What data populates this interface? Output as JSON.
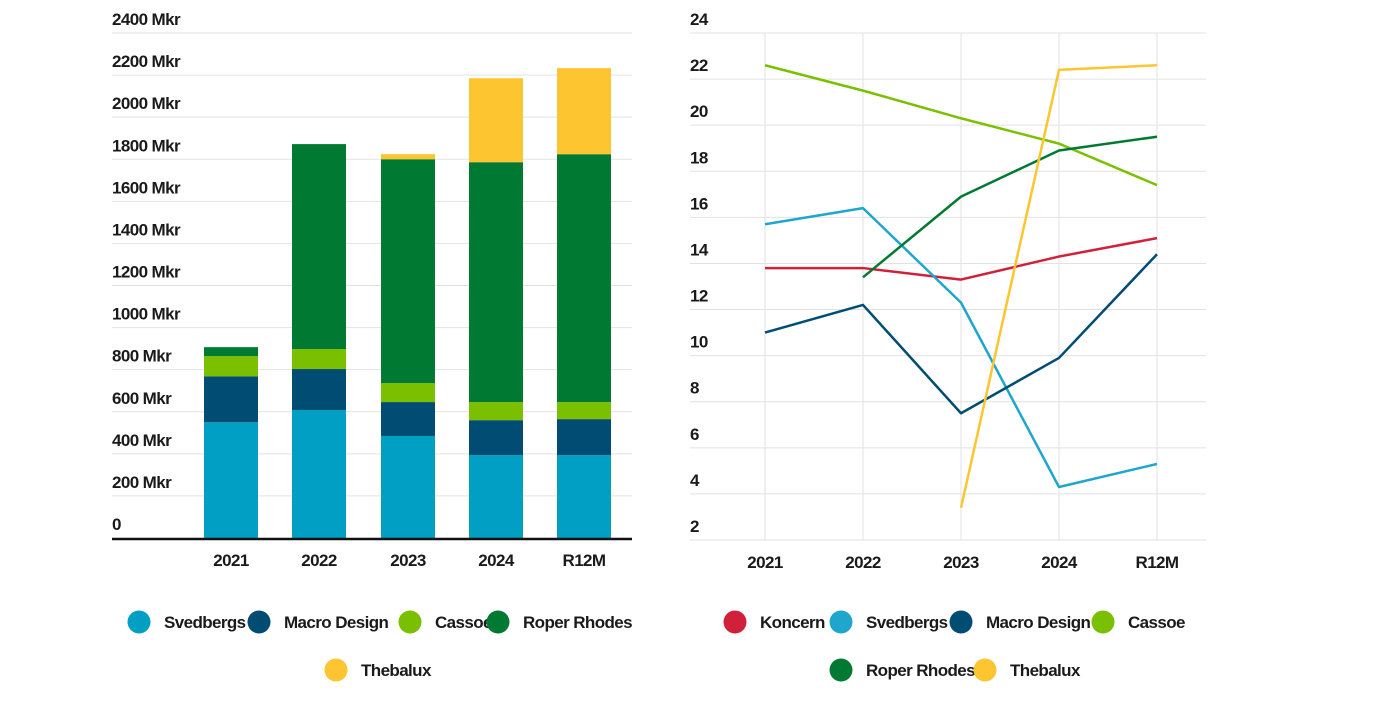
{
  "chart_data": [
    {
      "type": "bar",
      "stacked": true,
      "title": "",
      "xlabel": "",
      "ylabel": "",
      "ylim": [
        0,
        2400
      ],
      "yticks": [
        "0",
        "200 Mkr",
        "400 Mkr",
        "600 Mkr",
        "800 Mkr",
        "1000 Mkr",
        "1200 Mkr",
        "1400 Mkr",
        "1600 Mkr",
        "1800 Mkr",
        "2000 Mkr",
        "2200 Mkr",
        "2400 Mkr"
      ],
      "categories": [
        "2021",
        "2022",
        "2023",
        "2024",
        "R12M"
      ],
      "grid": true,
      "legend_position": "bottom",
      "series": [
        {
          "name": "Svedbergs",
          "color": "#009fc3",
          "values": [
            550,
            608,
            485,
            394,
            394
          ]
        },
        {
          "name": "Macro Design",
          "color": "#004c73",
          "values": [
            218,
            195,
            161,
            166,
            171
          ]
        },
        {
          "name": "Cassoe",
          "color": "#7ac000",
          "values": [
            96,
            95,
            90,
            86,
            81
          ]
        },
        {
          "name": "Roper Rhodes",
          "color": "#007a33",
          "values": [
            43,
            974,
            1064,
            1140,
            1178
          ]
        },
        {
          "name": "Thebalux",
          "color": "#fdc52f",
          "values": [
            0,
            0,
            24,
            399,
            409
          ]
        }
      ]
    },
    {
      "type": "line",
      "title": "",
      "xlabel": "",
      "ylabel": "",
      "ylim": [
        2,
        24
      ],
      "yticks": [
        "2",
        "4",
        "6",
        "8",
        "10",
        "12",
        "14",
        "16",
        "18",
        "20",
        "22",
        "24"
      ],
      "categories": [
        "2021",
        "2022",
        "2023",
        "2024",
        "R12M"
      ],
      "grid": true,
      "legend_position": "bottom",
      "series": [
        {
          "name": "Koncern",
          "color": "#d0203a",
          "values": [
            13.8,
            13.8,
            13.3,
            14.3,
            15.1
          ]
        },
        {
          "name": "Svedbergs",
          "color": "#1ea6cc",
          "values": [
            15.7,
            16.4,
            12.3,
            4.3,
            5.3
          ]
        },
        {
          "name": "Macro Design",
          "color": "#004c73",
          "values": [
            11.0,
            12.2,
            7.5,
            9.9,
            14.4
          ]
        },
        {
          "name": "Cassoe",
          "color": "#7ac000",
          "values": [
            22.6,
            21.5,
            20.3,
            19.2,
            17.4
          ]
        },
        {
          "name": "Roper Rhodes",
          "color": "#007a33",
          "values": [
            null,
            13.4,
            16.9,
            18.9,
            19.5
          ]
        },
        {
          "name": "Thebalux",
          "color": "#fdc52f",
          "values": [
            null,
            null,
            3.4,
            22.4,
            22.6
          ]
        }
      ]
    }
  ]
}
